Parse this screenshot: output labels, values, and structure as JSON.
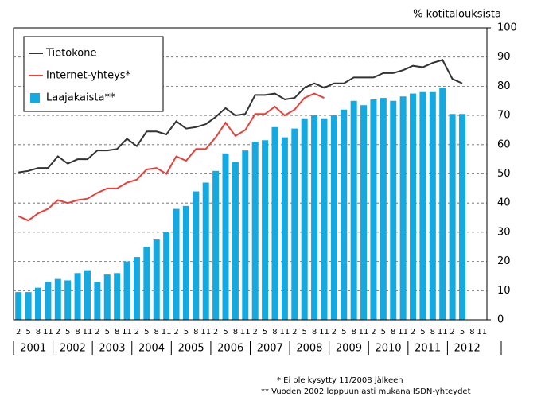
{
  "chart_data": {
    "type": "bar_line",
    "y_label": "% kotitalouksista",
    "categories": [
      "2",
      "5",
      "8",
      "11",
      "2",
      "5",
      "8",
      "11",
      "2",
      "5",
      "8",
      "11",
      "2",
      "5",
      "8",
      "11",
      "2",
      "5",
      "8",
      "11",
      "2",
      "5",
      "8",
      "11",
      "2",
      "5",
      "8",
      "11",
      "2",
      "5",
      "8",
      "11",
      "2",
      "5",
      "8",
      "11",
      "2",
      "5",
      "8",
      "11",
      "2",
      "5",
      "8",
      "11",
      "2",
      "5",
      "8",
      "11"
    ],
    "years": [
      "2001",
      "2002",
      "2003",
      "2004",
      "2005",
      "2006",
      "2007",
      "2008",
      "2009",
      "2010",
      "2011",
      "2012"
    ],
    "ylim": [
      0,
      100
    ],
    "yticks": [
      0,
      10,
      20,
      30,
      40,
      50,
      60,
      70,
      80,
      90,
      100
    ],
    "grid": true,
    "series": [
      {
        "name": "Tietokone",
        "type": "line",
        "color": "#333333",
        "values": [
          50.5,
          51,
          52,
          52,
          56,
          53.5,
          55,
          55,
          58,
          58,
          58.5,
          62,
          59.5,
          64.5,
          64.5,
          63.5,
          68,
          65.5,
          66,
          67,
          69.5,
          72.5,
          70,
          70.5,
          77,
          77,
          77.5,
          75.5,
          76,
          79.5,
          81,
          79.5,
          81,
          81,
          83,
          83,
          83,
          84.5,
          84.5,
          85.5,
          87,
          86.5,
          88,
          89,
          82.5,
          81,
          null,
          null
        ]
      },
      {
        "name": "Internet-yhteys*",
        "type": "line",
        "color": "#e8403a",
        "values": [
          35.5,
          34,
          36.5,
          38,
          41,
          40,
          41,
          41.5,
          43.5,
          45,
          45,
          47,
          48,
          51.5,
          52,
          50,
          56,
          54.5,
          58.5,
          58.5,
          62.5,
          67.5,
          63,
          65,
          70.5,
          70.5,
          73,
          70,
          72,
          76,
          77.5,
          76,
          null,
          null,
          null,
          null,
          null,
          null,
          null,
          null,
          null,
          null,
          null,
          null,
          null,
          null,
          null,
          null
        ]
      },
      {
        "name": "Laajakaista**",
        "type": "bar",
        "color": "#14a9e1",
        "values": [
          9.5,
          9.5,
          11,
          13,
          14,
          13.5,
          16,
          17,
          13,
          15.5,
          16,
          20,
          21.5,
          25,
          27.5,
          30,
          38,
          39,
          44,
          47,
          51,
          57,
          54,
          58,
          61,
          61.5,
          66,
          62.5,
          65.5,
          69,
          70,
          69,
          70,
          72,
          75,
          73.5,
          75.5,
          76,
          75,
          76.5,
          77.5,
          78,
          78,
          79.5,
          70.5,
          70.5,
          null,
          null
        ]
      }
    ],
    "footnotes": [
      "* Ei ole kysytty 11/2008 jälkeen",
      "** Vuoden 2002 loppuun asti mukana ISDN-yhteydet"
    ]
  }
}
